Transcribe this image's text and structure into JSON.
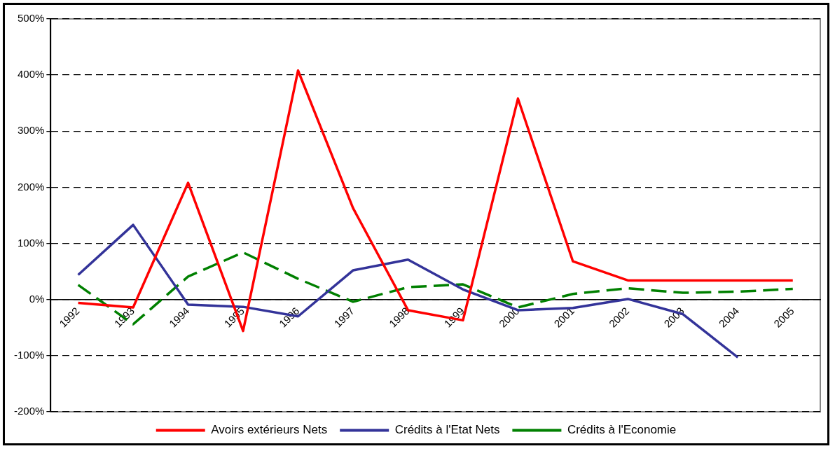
{
  "chart_data": {
    "type": "line",
    "categories": [
      "1992",
      "1993",
      "1994",
      "1995",
      "1996",
      "1997",
      "1998",
      "1999",
      "2000",
      "2001",
      "2002",
      "2003",
      "2004",
      "2005"
    ],
    "series": [
      {
        "name": "Avoirs extérieurs Nets",
        "color": "#ff0000",
        "values": [
          -6,
          -14,
          208,
          -56,
          408,
          163,
          -19,
          -37,
          358,
          68,
          34,
          34,
          34,
          34
        ]
      },
      {
        "name": "Crédits à l'Etat Nets",
        "color": "#333399",
        "values": [
          44,
          133,
          -9,
          -13,
          -30,
          52,
          71,
          18,
          -19,
          -15,
          1,
          -26,
          -103,
          null
        ]
      },
      {
        "name": "Crédits à l'Economie",
        "color": "#008000",
        "values": [
          26,
          -44,
          41,
          84,
          37,
          -4,
          22,
          27,
          -14,
          10,
          20,
          12,
          14,
          19
        ],
        "line_style": "dashed"
      }
    ],
    "ylim": [
      -200,
      500
    ],
    "yticks": [
      {
        "value": -200,
        "label": "-200%"
      },
      {
        "value": -100,
        "label": "-100%"
      },
      {
        "value": 0,
        "label": "0%"
      },
      {
        "value": 100,
        "label": "100%"
      },
      {
        "value": 200,
        "label": "200%"
      },
      {
        "value": 300,
        "label": "300%"
      },
      {
        "value": 400,
        "label": "400%"
      },
      {
        "value": 500,
        "label": "500%"
      }
    ],
    "grid": "y",
    "legend": "bottom",
    "marker": "none",
    "line_style": "solid"
  }
}
